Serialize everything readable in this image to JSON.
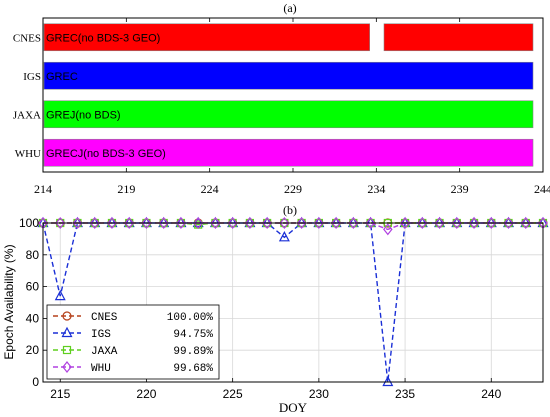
{
  "chart_data": [
    {
      "type": "bar",
      "panel_label": "(a)",
      "x_ticks": [
        214,
        219,
        224,
        229,
        234,
        239,
        244
      ],
      "xlim": [
        214,
        244
      ],
      "categories": [
        "CNES",
        "IGS",
        "JAXA",
        "WHU"
      ],
      "series": [
        {
          "name": "CNES",
          "label": "GREC(no BDS-3 GEO)",
          "color": "#ff0000",
          "segments": [
            [
              214,
              233.6
            ],
            [
              234.4,
              243.4
            ]
          ]
        },
        {
          "name": "IGS",
          "label": "GREC",
          "color": "#0000ff",
          "segments": [
            [
              214,
              243.4
            ]
          ]
        },
        {
          "name": "JAXA",
          "label": "GREJ(no BDS)",
          "color": "#00ff00",
          "segments": [
            [
              214,
              243.4
            ]
          ]
        },
        {
          "name": "WHU",
          "label": "GRECJ(no BDS-3 GEO)",
          "color": "#ff00ff",
          "segments": [
            [
              214,
              243.4
            ]
          ]
        }
      ]
    },
    {
      "type": "line",
      "panel_label": "(b)",
      "xlabel": "DOY",
      "ylabel": "Epoch Availability (%)",
      "xlim": [
        214,
        243
      ],
      "ylim": [
        0,
        100
      ],
      "x_ticks": [
        215,
        220,
        225,
        230,
        235,
        240
      ],
      "y_ticks": [
        0,
        20,
        40,
        60,
        80,
        100
      ],
      "grid": true,
      "legend": "bottom-left",
      "x": [
        214,
        215,
        216,
        217,
        218,
        219,
        220,
        221,
        222,
        223,
        224,
        225,
        226,
        227,
        228,
        229,
        230,
        231,
        232,
        233,
        234,
        235,
        236,
        237,
        238,
        239,
        240,
        241,
        242,
        243
      ],
      "series": [
        {
          "name": "CNES",
          "value_label": "100.00%",
          "color": "#b5401a",
          "marker": "circle",
          "values": [
            100,
            100,
            100,
            100,
            100,
            100,
            100,
            100,
            100,
            100,
            100,
            100,
            100,
            100,
            100,
            100,
            100,
            100,
            100,
            100,
            100,
            100,
            100,
            100,
            100,
            100,
            100,
            100,
            100,
            100
          ]
        },
        {
          "name": "IGS",
          "value_label": "94.75%",
          "color": "#1a2fd6",
          "marker": "triangle",
          "values": [
            100,
            54,
            100,
            100,
            100,
            100,
            100,
            100,
            100,
            100,
            100,
            100,
            100,
            100,
            91,
            100,
            100,
            100,
            100,
            100,
            0,
            100,
            100,
            100,
            100,
            100,
            100,
            100,
            100,
            100
          ]
        },
        {
          "name": "JAXA",
          "value_label": "99.89%",
          "color": "#5fcf1f",
          "marker": "square",
          "values": [
            100,
            100,
            100,
            100,
            100,
            100,
            100,
            100,
            100,
            99,
            100,
            100,
            100,
            100,
            100,
            100,
            100,
            100,
            100,
            100,
            100,
            100,
            100,
            100,
            100,
            100,
            100,
            100,
            100,
            100
          ]
        },
        {
          "name": "WHU",
          "value_label": "99.68%",
          "color": "#b040e0",
          "marker": "diamond",
          "values": [
            100,
            100,
            100,
            100,
            100,
            100,
            100,
            100,
            100,
            100,
            100,
            100,
            100,
            100,
            100,
            100,
            100,
            100,
            100,
            100,
            96,
            100,
            100,
            100,
            100,
            100,
            100,
            100,
            100,
            100
          ]
        }
      ]
    }
  ]
}
